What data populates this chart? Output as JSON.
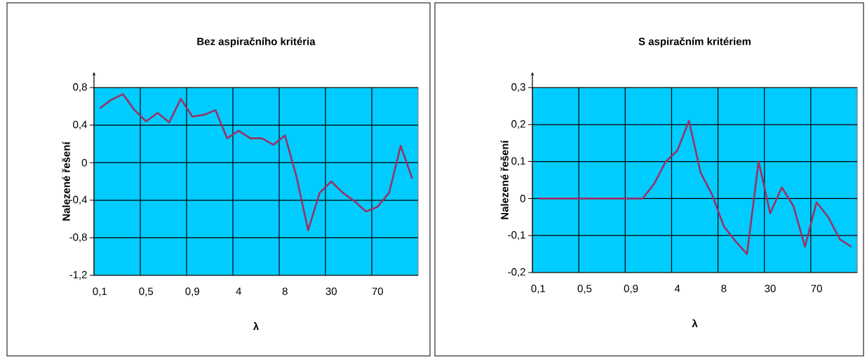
{
  "chart_data": [
    {
      "type": "line",
      "title": "Bez aspiračního kritéria",
      "xlabel": "λ",
      "ylabel": "Nalezené řešení",
      "categories": [
        "0,1",
        null,
        null,
        null,
        "0,5",
        null,
        null,
        null,
        "0,9",
        null,
        null,
        null,
        "4",
        null,
        null,
        null,
        "8",
        null,
        null,
        null,
        "30",
        null,
        null,
        null,
        "70",
        null,
        null,
        null
      ],
      "series": [
        {
          "color": "#993366",
          "values": [
            0.58,
            0.67,
            0.73,
            0.56,
            0.44,
            0.53,
            0.43,
            0.68,
            0.49,
            0.51,
            0.56,
            0.26,
            0.34,
            0.26,
            0.26,
            0.19,
            0.29,
            -0.15,
            -0.72,
            -0.32,
            -0.2,
            -0.32,
            -0.41,
            -0.52,
            -0.47,
            -0.32,
            0.18,
            -0.17
          ]
        }
      ],
      "ylim": [
        -1.2,
        0.8
      ],
      "yticks": [
        {
          "value": -1.2,
          "label": "-1,2"
        },
        {
          "value": -0.8,
          "label": "-0,8"
        },
        {
          "value": -0.4,
          "label": "-0,4"
        },
        0,
        {
          "value": 0.4,
          "label": "0,4"
        },
        {
          "value": 0.8,
          "label": "0,8"
        }
      ],
      "grid": true
    },
    {
      "type": "line",
      "title": "S aspiračním kritériem",
      "xlabel": "λ",
      "ylabel": "Nalezené řešení",
      "categories": [
        "0,1",
        null,
        null,
        null,
        "0,5",
        null,
        null,
        null,
        "0,9",
        null,
        null,
        null,
        "4",
        null,
        null,
        null,
        "8",
        null,
        null,
        null,
        "30",
        null,
        null,
        null,
        "70",
        null,
        null,
        null
      ],
      "series": [
        {
          "color": "#993366",
          "values": [
            0,
            0,
            0,
            0,
            0,
            0,
            0,
            0,
            0,
            0,
            0.04,
            0.1,
            0.13,
            0.21,
            0.07,
            0.01,
            -0.075,
            -0.115,
            -0.15,
            0.1,
            -0.04,
            0.03,
            -0.02,
            -0.13,
            -0.01,
            -0.05,
            -0.11,
            -0.13
          ]
        }
      ],
      "ylim": [
        -0.2,
        0.3
      ],
      "yticks": [
        {
          "value": -0.2,
          "label": "-0,2"
        },
        {
          "value": -0.1,
          "label": "-0,1"
        },
        0,
        {
          "value": 0.1,
          "label": "0,1"
        },
        {
          "value": 0.2,
          "label": "0,2"
        },
        {
          "value": 0.3,
          "label": "0,3"
        }
      ],
      "grid": true
    }
  ]
}
